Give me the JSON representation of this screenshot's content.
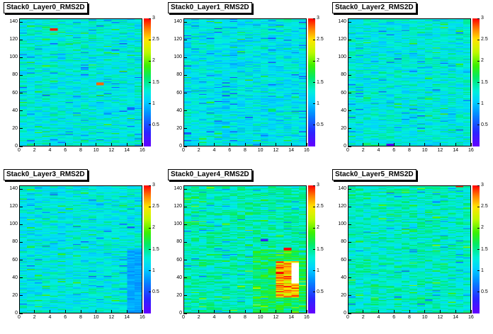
{
  "chart_data": [
    {
      "type": "heatmap",
      "title": "Stack0_Layer0_RMS2D",
      "x_ticks": [
        "0",
        "2",
        "4",
        "6",
        "8",
        "10",
        "12",
        "14",
        "16"
      ],
      "y_ticks": [
        "0",
        "20",
        "40",
        "60",
        "80",
        "100",
        "120",
        "140"
      ],
      "xlim": [
        0,
        16
      ],
      "ylim": [
        0,
        144
      ],
      "z_ticks": [
        "0.5",
        "1",
        "1.5",
        "2",
        "2.5",
        "3"
      ],
      "zlim": [
        0,
        3
      ],
      "typical_value": 1.25,
      "hotspots": [
        {
          "x": 4.5,
          "y": 131,
          "value": 2.95
        },
        {
          "x": 10.5,
          "y": 70,
          "value": 2.8
        },
        {
          "x": 14.5,
          "y": 42,
          "value": 0.6
        }
      ]
    },
    {
      "type": "heatmap",
      "title": "Stack0_Layer1_RMS2D",
      "x_ticks": [
        "0",
        "2",
        "4",
        "6",
        "8",
        "10",
        "12",
        "14",
        "16"
      ],
      "y_ticks": [
        "0",
        "20",
        "40",
        "60",
        "80",
        "100",
        "120",
        "140"
      ],
      "xlim": [
        0,
        16
      ],
      "ylim": [
        0,
        144
      ],
      "z_ticks": [
        "0.5",
        "1",
        "1.5",
        "2",
        "2.5",
        "3"
      ],
      "zlim": [
        0,
        3
      ],
      "typical_value": 1.2,
      "hotspots": [
        {
          "x": 11.5,
          "y": 40,
          "value": 1.6
        },
        {
          "x": 6.5,
          "y": 92,
          "value": 0.9
        }
      ]
    },
    {
      "type": "heatmap",
      "title": "Stack0_Layer2_RMS2D",
      "x_ticks": [
        "0",
        "2",
        "4",
        "6",
        "8",
        "10",
        "12",
        "14",
        "16"
      ],
      "y_ticks": [
        "0",
        "20",
        "40",
        "60",
        "80",
        "100",
        "120",
        "140"
      ],
      "xlim": [
        0,
        16
      ],
      "ylim": [
        0,
        144
      ],
      "z_ticks": [
        "0.5",
        "1",
        "1.5",
        "2",
        "2.5",
        "3"
      ],
      "zlim": [
        0,
        3
      ],
      "typical_value": 1.25,
      "hotspots": [
        {
          "x": 5.5,
          "y": 1,
          "value": 0.1
        }
      ]
    },
    {
      "type": "heatmap",
      "title": "Stack0_Layer3_RMS2D",
      "x_ticks": [
        "0",
        "2",
        "4",
        "6",
        "8",
        "10",
        "12",
        "14",
        "16"
      ],
      "y_ticks": [
        "0",
        "20",
        "40",
        "60",
        "80",
        "100",
        "120",
        "140"
      ],
      "xlim": [
        0,
        16
      ],
      "ylim": [
        0,
        144
      ],
      "z_ticks": [
        "0.5",
        "1",
        "1.5",
        "2",
        "2.5",
        "3"
      ],
      "zlim": [
        0,
        3
      ],
      "typical_value": 1.25,
      "hotspots": [
        {
          "x": 14.5,
          "y": 40,
          "value": 0.85
        },
        {
          "x": 15.5,
          "y": 40,
          "value": 0.85
        }
      ]
    },
    {
      "type": "heatmap",
      "title": "Stack0_Layer4_RMS2D",
      "x_ticks": [
        "0",
        "2",
        "4",
        "6",
        "8",
        "10",
        "12",
        "14",
        "16"
      ],
      "y_ticks": [
        "0",
        "20",
        "40",
        "60",
        "80",
        "100",
        "120",
        "140"
      ],
      "xlim": [
        0,
        16
      ],
      "ylim": [
        0,
        144
      ],
      "z_ticks": [
        "0.5",
        "1",
        "1.5",
        "2",
        "2.5",
        "3"
      ],
      "zlim": [
        0,
        3
      ],
      "typical_value": 1.4,
      "hotspots": [
        {
          "x": 12.5,
          "y": 45,
          "value": 3.0
        },
        {
          "x": 13.5,
          "y": 45,
          "value": 2.7
        },
        {
          "x": 14.5,
          "y": 45,
          "value": 3.5
        },
        {
          "x": 10.5,
          "y": 82,
          "value": 0.3
        },
        {
          "x": 13.5,
          "y": 72,
          "value": 3.0
        }
      ]
    },
    {
      "type": "heatmap",
      "title": "Stack0_Layer5_RMS2D",
      "x_ticks": [
        "0",
        "2",
        "4",
        "6",
        "8",
        "10",
        "12",
        "14",
        "16"
      ],
      "y_ticks": [
        "0",
        "20",
        "40",
        "60",
        "80",
        "100",
        "120",
        "140"
      ],
      "xlim": [
        0,
        16
      ],
      "ylim": [
        0,
        144
      ],
      "z_ticks": [
        "0.5",
        "1",
        "1.5",
        "2",
        "2.5",
        "3"
      ],
      "zlim": [
        0,
        3
      ],
      "typical_value": 1.35,
      "hotspots": [
        {
          "x": 14.5,
          "y": 143,
          "value": 2.95
        },
        {
          "x": 12.5,
          "y": 131,
          "value": 1.6
        }
      ]
    }
  ]
}
